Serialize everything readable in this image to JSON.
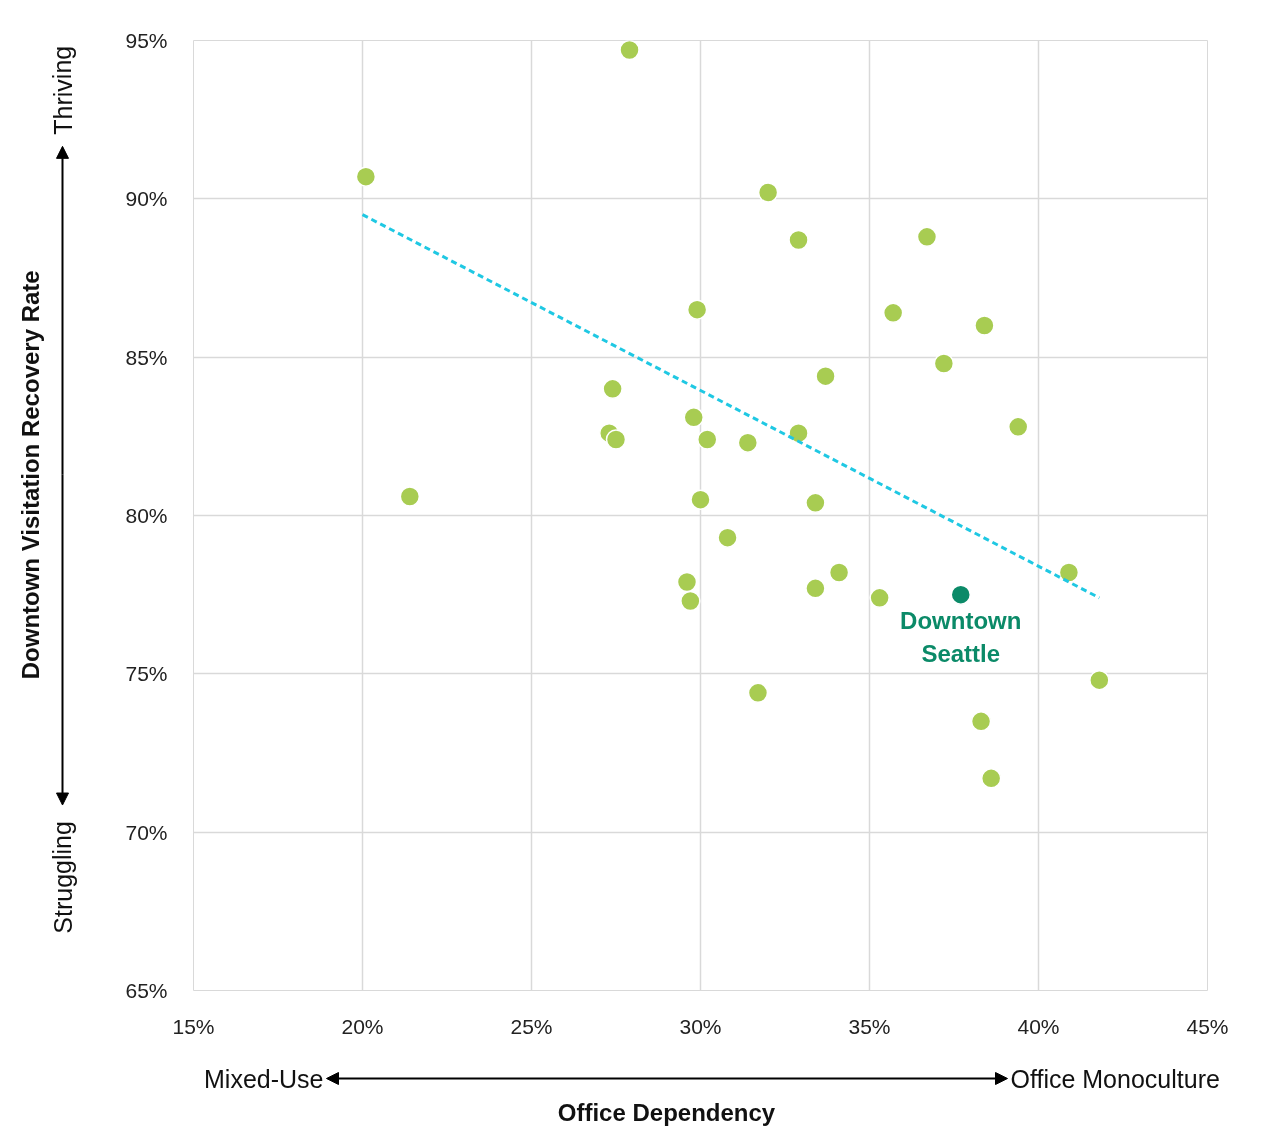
{
  "chart_data": {
    "type": "scatter",
    "xlabel": "Office Dependency",
    "ylabel": "Downtown Visitation Recovery Rate",
    "xlim": [
      15,
      45
    ],
    "ylim": [
      65,
      95
    ],
    "xticks": [
      {
        "value": 15,
        "label": "15%"
      },
      {
        "value": 20,
        "label": "20%"
      },
      {
        "value": 25,
        "label": "25%"
      },
      {
        "value": 30,
        "label": "30%"
      },
      {
        "value": 35,
        "label": "35%"
      },
      {
        "value": 40,
        "label": "40%"
      },
      {
        "value": 45,
        "label": "45%"
      }
    ],
    "yticks": [
      {
        "value": 65,
        "label": "65%"
      },
      {
        "value": 70,
        "label": "70%"
      },
      {
        "value": 75,
        "label": "75%"
      },
      {
        "value": 80,
        "label": "80%"
      },
      {
        "value": 85,
        "label": "85%"
      },
      {
        "value": 90,
        "label": "90%"
      },
      {
        "value": 95,
        "label": "95%"
      }
    ],
    "grid": true,
    "legend": false,
    "marker": "circle",
    "annotations": [
      "Thriving",
      "Struggling",
      "Mixed-Use",
      "Office Monoculture"
    ],
    "series": [
      {
        "color": "#a8cc52",
        "x": [
          27.9,
          20.1,
          32.0,
          32.9,
          36.7,
          29.9,
          35.7,
          38.4,
          37.2,
          33.7,
          27.4,
          29.8,
          27.3,
          27.5,
          30.2,
          31.4,
          32.9,
          39.4,
          21.4,
          30.0,
          33.4,
          30.8,
          29.6,
          29.7,
          34.1,
          33.4,
          35.3,
          40.9,
          31.7,
          41.8,
          38.3,
          38.6
        ],
        "values": [
          94.7,
          90.7,
          90.2,
          88.7,
          88.8,
          86.5,
          86.4,
          86.0,
          84.8,
          84.4,
          84.0,
          83.1,
          82.6,
          82.4,
          82.4,
          82.3,
          82.6,
          82.8,
          80.6,
          80.5,
          80.4,
          79.3,
          77.9,
          77.3,
          78.2,
          77.7,
          77.4,
          78.2,
          74.4,
          74.8,
          73.5,
          71.7
        ]
      },
      {
        "type": "scatter",
        "name": "Downtown Seattle",
        "color": "#0b8a68",
        "x": [
          37.7
        ],
        "values": [
          77.5
        ]
      },
      {
        "type": "line",
        "color": "#1fc8e3",
        "line_style": "dashed",
        "marker": "none",
        "x": [
          20.0,
          41.8
        ],
        "values": [
          89.5,
          77.4
        ]
      }
    ]
  }
}
